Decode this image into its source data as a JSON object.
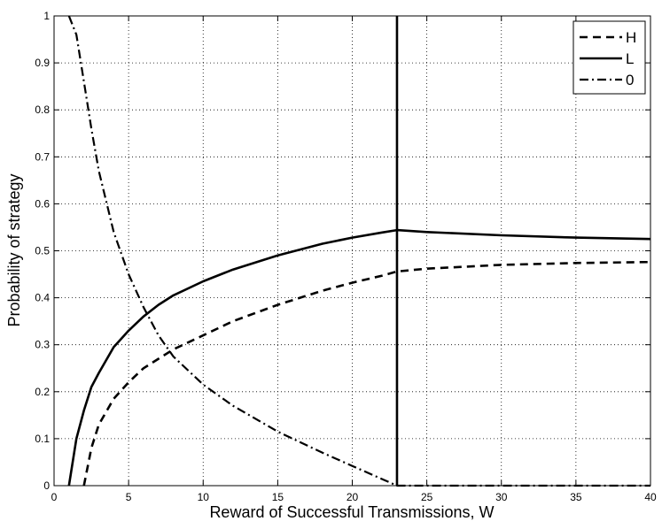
{
  "chart_data": {
    "type": "line",
    "title": "",
    "xlabel": "Reward of Successful Transmissions, W",
    "ylabel": "Probability of strategy",
    "xlim": [
      0,
      40
    ],
    "ylim": [
      0,
      1
    ],
    "xticks": [
      0,
      5,
      10,
      15,
      20,
      25,
      30,
      35,
      40
    ],
    "yticks": [
      0,
      0.1,
      0.2,
      0.3,
      0.4,
      0.5,
      0.6,
      0.7,
      0.8,
      0.9,
      1
    ],
    "xtick_labels": [
      "0",
      "5",
      "10",
      "15",
      "20",
      "25",
      "30",
      "35",
      "40"
    ],
    "ytick_labels": [
      "0",
      "0.1",
      "0.2",
      "0.3",
      "0.4",
      "0.5",
      "0.6",
      "0.7",
      "0.8",
      "0.9",
      "1"
    ],
    "grid": true,
    "legend_position": "top-right",
    "series": [
      {
        "name": "H",
        "style": "dashed",
        "color": "#000000",
        "x": [
          2,
          2.5,
          3,
          4,
          5,
          6,
          7,
          8,
          10,
          12,
          15,
          18,
          20,
          22,
          23,
          25,
          30,
          35,
          40
        ],
        "y": [
          0,
          0.08,
          0.13,
          0.185,
          0.22,
          0.25,
          0.27,
          0.29,
          0.32,
          0.35,
          0.385,
          0.415,
          0.432,
          0.447,
          0.456,
          0.462,
          0.47,
          0.474,
          0.476
        ]
      },
      {
        "name": "L",
        "style": "solid",
        "color": "#000000",
        "x": [
          1,
          1.5,
          2,
          2.5,
          3,
          4,
          5,
          6,
          7,
          8,
          10,
          12,
          15,
          18,
          20,
          22,
          23,
          25,
          30,
          35,
          40
        ],
        "y": [
          0,
          0.1,
          0.16,
          0.21,
          0.24,
          0.295,
          0.33,
          0.36,
          0.385,
          0.405,
          0.435,
          0.46,
          0.49,
          0.515,
          0.528,
          0.539,
          0.544,
          0.54,
          0.533,
          0.528,
          0.525
        ]
      },
      {
        "name": "0",
        "style": "dashdot",
        "color": "#000000",
        "x": [
          1,
          1.5,
          2,
          2.5,
          3,
          4,
          5,
          6,
          7,
          8,
          10,
          12,
          15,
          18,
          20,
          22,
          23,
          25,
          30,
          35,
          40
        ],
        "y": [
          1,
          0.96,
          0.86,
          0.76,
          0.67,
          0.54,
          0.45,
          0.38,
          0.32,
          0.275,
          0.215,
          0.17,
          0.115,
          0.07,
          0.042,
          0.014,
          0,
          0,
          0,
          0,
          0
        ]
      }
    ],
    "annotations": [
      {
        "type": "vertical-line",
        "x": 23,
        "style": "solid",
        "color": "#000000"
      }
    ]
  }
}
